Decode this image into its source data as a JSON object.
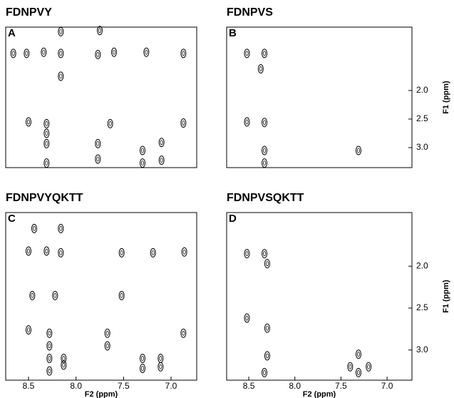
{
  "chart_data": [
    {
      "type": "contour",
      "title": "FDNPVY",
      "panel_label": "A",
      "xlim": [
        8.74,
        6.73
      ],
      "ylim": [
        0.89,
        3.35
      ],
      "x": [
        8.66,
        8.52,
        8.34,
        8.16,
        7.77,
        7.6,
        7.26,
        6.87,
        8.16,
        7.75,
        8.16,
        8.5,
        8.31,
        7.64,
        6.87,
        8.31,
        7.77,
        8.31,
        7.1,
        7.3,
        8.31,
        7.77,
        7.1,
        7.3
      ],
      "values": [
        1.35,
        1.35,
        1.33,
        1.35,
        1.37,
        1.33,
        1.33,
        1.35,
        0.97,
        0.95,
        1.75,
        2.55,
        2.58,
        2.58,
        2.57,
        2.75,
        2.93,
        2.93,
        2.91,
        3.05,
        3.27,
        3.2,
        3.22,
        3.27
      ]
    },
    {
      "type": "contour",
      "title": "FDNPVS",
      "panel_label": "B",
      "xlim": [
        8.74,
        6.73
      ],
      "ylim": [
        0.89,
        3.35
      ],
      "yticks": [
        {
          "value": 2,
          "label": "2.0"
        },
        2.5,
        {
          "value": 3,
          "label": "3.0"
        }
      ],
      "ylabel": "F1 (ppm)",
      "x": [
        8.52,
        8.33,
        8.37,
        8.52,
        8.33,
        8.33,
        7.31,
        8.33
      ],
      "values": [
        1.35,
        1.35,
        1.62,
        2.55,
        2.56,
        3.05,
        3.05,
        3.27
      ]
    },
    {
      "type": "contour",
      "title": "FDNPVYQKTT",
      "panel_label": "C",
      "xlim": [
        8.74,
        6.73
      ],
      "ylim": [
        1.36,
        3.36
      ],
      "xticks": [
        8.5,
        {
          "value": 8,
          "label": "8.0"
        },
        7.5,
        {
          "value": 7,
          "label": "7.0"
        }
      ],
      "xlabel": "F2 (ppm)",
      "x": [
        8.44,
        8.16,
        8.5,
        8.31,
        8.16,
        7.52,
        7.19,
        6.86,
        8.46,
        8.22,
        7.52,
        8.5,
        8.28,
        7.67,
        6.87,
        8.28,
        7.67,
        8.28,
        8.13,
        7.3,
        7.11,
        8.13,
        7.11,
        7.3,
        8.28
      ],
      "values": [
        1.55,
        1.55,
        1.82,
        1.82,
        1.84,
        1.84,
        1.84,
        1.83,
        2.35,
        2.35,
        2.35,
        2.76,
        2.8,
        2.8,
        2.8,
        2.95,
        2.95,
        3.1,
        3.1,
        3.1,
        3.1,
        3.18,
        3.2,
        3.22,
        3.25
      ]
    },
    {
      "type": "contour",
      "title": "FDNPVSQKTT",
      "panel_label": "D",
      "xlim": [
        8.74,
        6.73
      ],
      "ylim": [
        1.36,
        3.36
      ],
      "xticks": [
        8.5,
        {
          "value": 8,
          "label": "8.0"
        },
        7.5,
        {
          "value": 7,
          "label": "7.0"
        }
      ],
      "xlabel": "F2 (ppm)",
      "yticks": [
        {
          "value": 2,
          "label": "2.0"
        },
        2.5,
        {
          "value": 3,
          "label": "3.0"
        }
      ],
      "ylabel": "F1 (ppm)",
      "x": [
        8.52,
        8.33,
        8.3,
        8.52,
        8.3,
        8.3,
        7.31,
        7.31,
        7.4,
        7.2,
        8.33
      ],
      "values": [
        1.85,
        1.85,
        1.97,
        2.62,
        2.74,
        3.07,
        3.05,
        3.27,
        3.2,
        3.2,
        3.27
      ]
    }
  ]
}
